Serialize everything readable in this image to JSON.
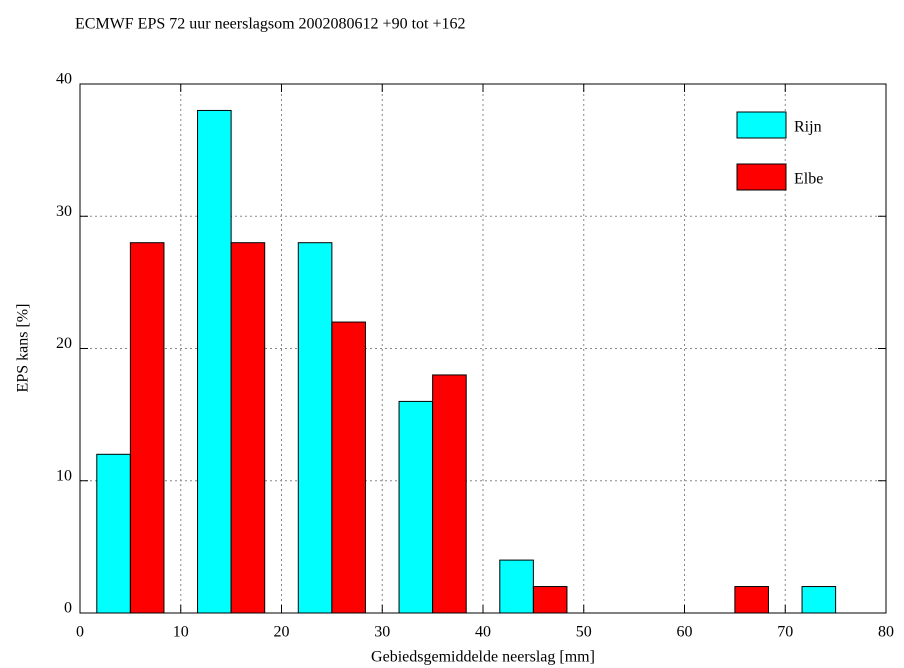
{
  "chart_data": {
    "type": "bar",
    "title": "ECMWF EPS 72 uur neerslagsom 2002080612 +90 tot +162",
    "xlabel": "Gebiedsgemiddelde neerslag [mm]",
    "ylabel": "EPS kans [%]",
    "x": [
      5,
      15,
      25,
      35,
      45,
      55,
      65,
      75
    ],
    "series": [
      {
        "name": "Rijn",
        "color": "#00ffff",
        "values": [
          12,
          38,
          28,
          16,
          4,
          0,
          0,
          2
        ]
      },
      {
        "name": "Elbe",
        "color": "#ff0000",
        "values": [
          28,
          28,
          22,
          18,
          2,
          0,
          2,
          0
        ]
      }
    ],
    "xlim": [
      0,
      80
    ],
    "xticks": [
      0,
      10,
      20,
      30,
      40,
      50,
      60,
      70,
      80
    ],
    "ylim": [
      0,
      40
    ],
    "yticks": [
      0,
      10,
      20,
      30,
      40
    ],
    "grid": true,
    "legend": "upper right"
  }
}
